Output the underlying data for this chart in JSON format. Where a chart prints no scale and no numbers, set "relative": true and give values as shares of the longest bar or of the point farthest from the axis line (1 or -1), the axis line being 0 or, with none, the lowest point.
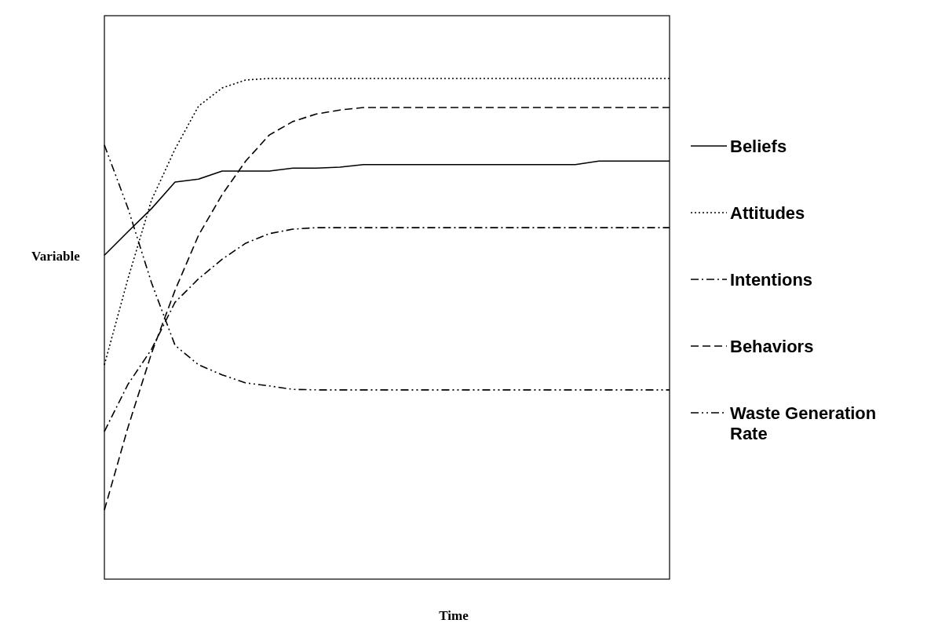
{
  "chart_data": {
    "type": "line",
    "relative": true,
    "xlabel": "Time",
    "ylabel": "Variable",
    "legend": "right",
    "marker": "none",
    "categories": [
      null,
      null,
      null,
      null,
      null,
      null,
      null,
      null,
      null,
      null,
      null,
      null,
      null,
      null,
      null,
      null,
      null,
      null,
      null,
      null,
      null,
      null,
      null,
      null,
      null
    ],
    "series": [
      {
        "name": "Beliefs",
        "color": "#000000",
        "line_style": "solid",
        "values": [
          0.647,
          0.694,
          0.74,
          0.793,
          0.799,
          0.815,
          0.815,
          0.815,
          0.821,
          0.821,
          0.823,
          0.828,
          0.828,
          0.828,
          0.828,
          0.828,
          0.828,
          0.828,
          0.828,
          0.828,
          0.828,
          0.835,
          0.835,
          0.835,
          0.835
        ]
      },
      {
        "name": "Attitudes",
        "color": "#000000",
        "line_style": "dotted",
        "values": [
          0.428,
          0.6,
          0.757,
          0.859,
          0.945,
          0.981,
          0.997,
          1,
          1,
          1,
          1,
          1,
          1,
          1,
          1,
          1,
          1,
          1,
          1,
          1,
          1,
          1,
          1,
          1,
          1
        ]
      },
      {
        "name": "Intentions",
        "color": "#000000",
        "line_style": "dashdot",
        "values": [
          0.295,
          0.389,
          0.459,
          0.553,
          0.6,
          0.639,
          0.671,
          0.69,
          0.699,
          0.702,
          0.702,
          0.702,
          0.702,
          0.702,
          0.702,
          0.702,
          0.702,
          0.702,
          0.702,
          0.702,
          0.702,
          0.702,
          0.702,
          0.702,
          0.702
        ]
      },
      {
        "name": "Behaviors",
        "color": "#000000",
        "line_style": "dashed",
        "values": [
          0.138,
          0.303,
          0.451,
          0.577,
          0.687,
          0.768,
          0.835,
          0.887,
          0.914,
          0.929,
          0.937,
          0.942,
          0.942,
          0.942,
          0.942,
          0.942,
          0.942,
          0.942,
          0.942,
          0.942,
          0.942,
          0.942,
          0.942,
          0.942,
          0.942
        ]
      },
      {
        "name": "Waste Generation Rate",
        "color": "#000000",
        "line_style": "dashdotdot",
        "values": [
          0.867,
          0.741,
          0.592,
          0.467,
          0.428,
          0.408,
          0.392,
          0.386,
          0.379,
          0.378,
          0.378,
          0.378,
          0.378,
          0.378,
          0.378,
          0.378,
          0.378,
          0.378,
          0.378,
          0.378,
          0.378,
          0.378,
          0.378,
          0.378,
          0.378
        ]
      }
    ]
  }
}
